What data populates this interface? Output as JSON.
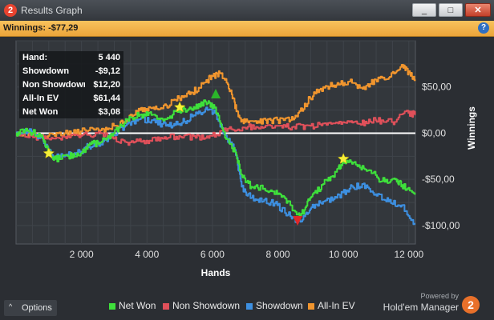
{
  "window": {
    "title": "Results Graph",
    "app_logo_text": "2",
    "minimize_glyph": "_",
    "maximize_glyph": "□",
    "close_glyph": "✕"
  },
  "winnings_bar": {
    "label": "Winnings: -$77,29",
    "help_glyph": "?"
  },
  "stats": [
    {
      "label": "Hand:",
      "value": "5 440"
    },
    {
      "label": "Showdown",
      "value": "-$9,12"
    },
    {
      "label": "Non Showdown",
      "value": "$12,20"
    },
    {
      "label": "All-In EV",
      "value": "$61,44"
    },
    {
      "label": "Net Won",
      "value": "$3,08"
    }
  ],
  "options": {
    "label": "Options",
    "caret_glyph": "^"
  },
  "legend": [
    {
      "name": "Net Won",
      "color": "#3ee03b"
    },
    {
      "name": "Non Showdown",
      "color": "#e0505a"
    },
    {
      "name": "Showdown",
      "color": "#3d8fe0"
    },
    {
      "name": "All-In EV",
      "color": "#f0952e"
    }
  ],
  "branding": {
    "powered_by": "Powered by",
    "product": "Hold'em Manager",
    "logo_text": "2"
  },
  "chart_data": {
    "type": "line",
    "xlabel": "Hands",
    "ylabel": "Winnings",
    "xlim": [
      0,
      12200
    ],
    "ylim": [
      -120,
      100
    ],
    "x_ticks": [
      {
        "value": 2000,
        "label": "2 000"
      },
      {
        "value": 4000,
        "label": "4 000"
      },
      {
        "value": 6000,
        "label": "6 000"
      },
      {
        "value": 8000,
        "label": "8 000"
      },
      {
        "value": 10000,
        "label": "10 000"
      },
      {
        "value": 12000,
        "label": "12 000"
      }
    ],
    "y_ticks": [
      {
        "value": 50,
        "label": "$50,00"
      },
      {
        "value": 0,
        "label": "$0,00"
      },
      {
        "value": -50,
        "label": "-$50,00"
      },
      {
        "value": -100,
        "label": "-$100,00"
      }
    ],
    "grid": true,
    "legend_position": "bottom",
    "series": [
      {
        "name": "All-In EV",
        "color": "#f0952e",
        "points": [
          [
            0,
            0
          ],
          [
            500,
            -2
          ],
          [
            1000,
            -3
          ],
          [
            1500,
            0
          ],
          [
            2000,
            2
          ],
          [
            2600,
            3
          ],
          [
            3000,
            8
          ],
          [
            3400,
            15
          ],
          [
            3800,
            25
          ],
          [
            4200,
            28
          ],
          [
            4600,
            30
          ],
          [
            5000,
            38
          ],
          [
            5400,
            44
          ],
          [
            5800,
            55
          ],
          [
            6000,
            62
          ],
          [
            6300,
            65
          ],
          [
            6600,
            42
          ],
          [
            6800,
            18
          ],
          [
            7000,
            12
          ],
          [
            7400,
            13
          ],
          [
            7800,
            14
          ],
          [
            8200,
            14
          ],
          [
            8600,
            18
          ],
          [
            9000,
            38
          ],
          [
            9400,
            50
          ],
          [
            9800,
            52
          ],
          [
            10200,
            56
          ],
          [
            10600,
            48
          ],
          [
            11000,
            58
          ],
          [
            11400,
            60
          ],
          [
            11800,
            74
          ],
          [
            12000,
            66
          ],
          [
            12200,
            58
          ]
        ]
      },
      {
        "name": "Non Showdown",
        "color": "#e0505a",
        "points": [
          [
            0,
            0
          ],
          [
            500,
            -3
          ],
          [
            1000,
            -6
          ],
          [
            1500,
            -4
          ],
          [
            2000,
            -3
          ],
          [
            2500,
            0
          ],
          [
            3000,
            -6
          ],
          [
            3500,
            -10
          ],
          [
            4000,
            -8
          ],
          [
            4500,
            -6
          ],
          [
            5000,
            -3
          ],
          [
            5500,
            -5
          ],
          [
            6000,
            -3
          ],
          [
            6500,
            5
          ],
          [
            7000,
            6
          ],
          [
            7500,
            7
          ],
          [
            8000,
            8
          ],
          [
            8500,
            7
          ],
          [
            9000,
            8
          ],
          [
            9500,
            9
          ],
          [
            10000,
            12
          ],
          [
            10500,
            10
          ],
          [
            11000,
            14
          ],
          [
            11500,
            12
          ],
          [
            12000,
            22
          ],
          [
            12200,
            20
          ]
        ]
      },
      {
        "name": "Showdown",
        "color": "#3d8fe0",
        "points": [
          [
            0,
            0
          ],
          [
            400,
            3
          ],
          [
            800,
            -5
          ],
          [
            1000,
            -20
          ],
          [
            1200,
            -26
          ],
          [
            1600,
            -24
          ],
          [
            2000,
            -20
          ],
          [
            2200,
            -14
          ],
          [
            2600,
            -12
          ],
          [
            3000,
            -2
          ],
          [
            3400,
            10
          ],
          [
            3800,
            15
          ],
          [
            4200,
            14
          ],
          [
            4600,
            8
          ],
          [
            5000,
            10
          ],
          [
            5400,
            18
          ],
          [
            5800,
            26
          ],
          [
            6100,
            22
          ],
          [
            6400,
            -2
          ],
          [
            6700,
            -18
          ],
          [
            6900,
            -58
          ],
          [
            7200,
            -70
          ],
          [
            7600,
            -72
          ],
          [
            8000,
            -78
          ],
          [
            8400,
            -90
          ],
          [
            8700,
            -96
          ],
          [
            9000,
            -82
          ],
          [
            9400,
            -74
          ],
          [
            9800,
            -70
          ],
          [
            10200,
            -60
          ],
          [
            10600,
            -55
          ],
          [
            11000,
            -66
          ],
          [
            11400,
            -74
          ],
          [
            11800,
            -78
          ],
          [
            12200,
            -98
          ]
        ]
      },
      {
        "name": "Net Won",
        "color": "#3ee03b",
        "points": [
          [
            0,
            0
          ],
          [
            400,
            2
          ],
          [
            800,
            -2
          ],
          [
            1000,
            -20
          ],
          [
            1200,
            -28
          ],
          [
            1600,
            -25
          ],
          [
            2000,
            -22
          ],
          [
            2300,
            -12
          ],
          [
            2600,
            -10
          ],
          [
            3000,
            0
          ],
          [
            3400,
            15
          ],
          [
            3800,
            20
          ],
          [
            4200,
            20
          ],
          [
            4600,
            15
          ],
          [
            5000,
            25
          ],
          [
            5400,
            25
          ],
          [
            5800,
            34
          ],
          [
            6100,
            28
          ],
          [
            6400,
            -5
          ],
          [
            6700,
            -20
          ],
          [
            6900,
            -45
          ],
          [
            7200,
            -58
          ],
          [
            7600,
            -60
          ],
          [
            8000,
            -66
          ],
          [
            8400,
            -78
          ],
          [
            8700,
            -90
          ],
          [
            9000,
            -70
          ],
          [
            9400,
            -55
          ],
          [
            9800,
            -42
          ],
          [
            10000,
            -30
          ],
          [
            10400,
            -34
          ],
          [
            10800,
            -40
          ],
          [
            11200,
            -52
          ],
          [
            11600,
            -50
          ],
          [
            11800,
            -56
          ],
          [
            12200,
            -66
          ]
        ]
      }
    ],
    "markers": [
      {
        "type": "star",
        "x": 1000,
        "y": -22,
        "color": "#f5ee3a"
      },
      {
        "type": "star",
        "x": 5000,
        "y": 28,
        "color": "#f5ee3a"
      },
      {
        "type": "star",
        "x": 10000,
        "y": -28,
        "color": "#f5ee3a"
      },
      {
        "type": "triangle-up",
        "x": 6100,
        "y": 42,
        "color": "#2bb52a"
      },
      {
        "type": "triangle-down",
        "x": 8600,
        "y": -94,
        "color": "#e02828"
      }
    ]
  }
}
